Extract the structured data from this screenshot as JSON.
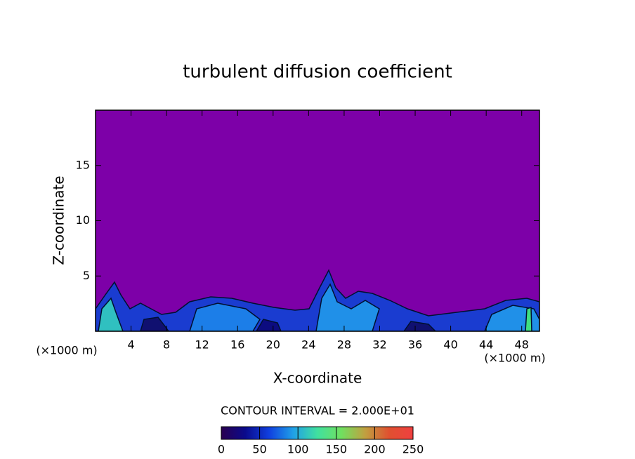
{
  "chart_data": {
    "type": "contour",
    "title": "turbulent diffusion coefficient",
    "xlabel": "X-coordinate",
    "ylabel": "Z-coordinate",
    "xunit": "(×1000 m)",
    "yunit": "(×1000 m)",
    "xlim": [
      0,
      50
    ],
    "ylim": [
      0,
      20
    ],
    "xticks": [
      4,
      8,
      12,
      16,
      20,
      24,
      28,
      32,
      36,
      40,
      44,
      48
    ],
    "yticks": [
      5,
      10,
      15
    ],
    "background_color": "#7d00a8",
    "contour_interval_text": "CONTOUR INTERVAL = 2.000E+01",
    "colorbar": {
      "lim": [
        0,
        250
      ],
      "ticks": [
        0,
        50,
        100,
        150,
        200,
        250
      ],
      "colors": [
        "#2a0050",
        "#0a0a8c",
        "#1040e0",
        "#20a0e8",
        "#40e0a0",
        "#70e060",
        "#c0a040",
        "#e05030",
        "#f04040"
      ]
    }
  }
}
